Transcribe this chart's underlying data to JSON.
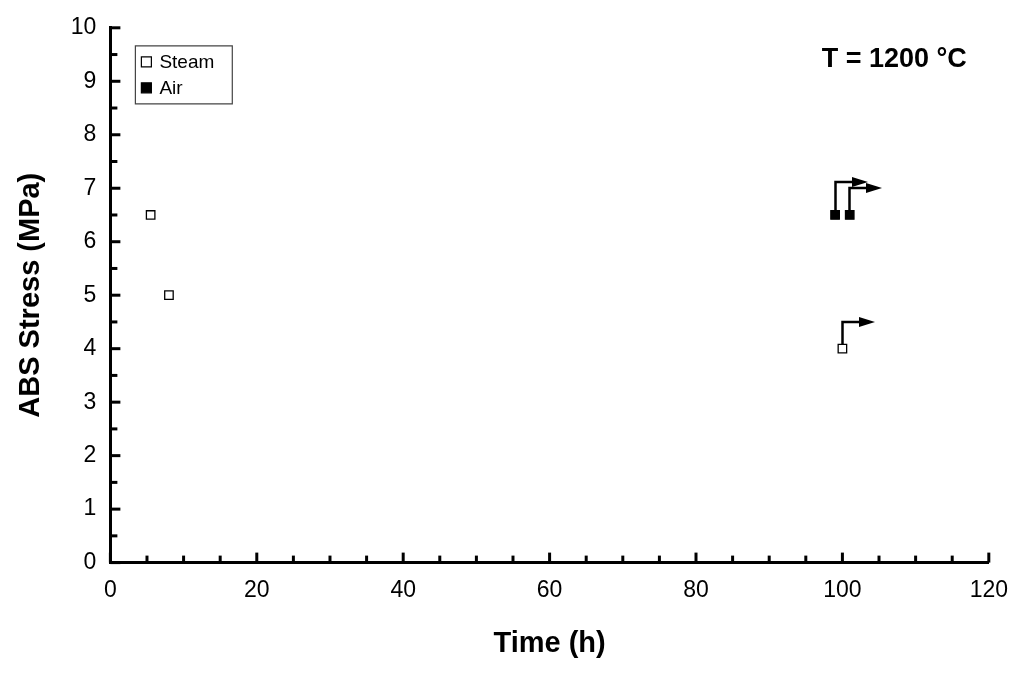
{
  "chart_data": {
    "type": "scatter",
    "xlabel": "Time (h)",
    "ylabel": "ABS Stress (MPa)",
    "xlim": [
      0,
      120
    ],
    "ylim": [
      0,
      10
    ],
    "xticks": [
      0,
      {
        "value": 5,
        "label": null
      },
      {
        "value": 10,
        "label": null
      },
      {
        "value": 15,
        "label": null
      },
      20,
      {
        "value": 25,
        "label": null
      },
      {
        "value": 30,
        "label": null
      },
      {
        "value": 35,
        "label": null
      },
      40,
      {
        "value": 45,
        "label": null
      },
      {
        "value": 50,
        "label": null
      },
      {
        "value": 55,
        "label": null
      },
      60,
      {
        "value": 65,
        "label": null
      },
      {
        "value": 70,
        "label": null
      },
      {
        "value": 75,
        "label": null
      },
      80,
      {
        "value": 85,
        "label": null
      },
      {
        "value": 90,
        "label": null
      },
      {
        "value": 95,
        "label": null
      },
      100,
      {
        "value": 105,
        "label": null
      },
      {
        "value": 110,
        "label": null
      },
      {
        "value": 115,
        "label": null
      },
      120
    ],
    "yticks": [
      0,
      {
        "value": 0.5,
        "label": null
      },
      1,
      {
        "value": 1.5,
        "label": null
      },
      2,
      {
        "value": 2.5,
        "label": null
      },
      3,
      {
        "value": 3.5,
        "label": null
      },
      4,
      {
        "value": 4.5,
        "label": null
      },
      5,
      {
        "value": 5.5,
        "label": null
      },
      6,
      {
        "value": 6.5,
        "label": null
      },
      7,
      {
        "value": 7.5,
        "label": null
      },
      8,
      {
        "value": 8.5,
        "label": null
      },
      9,
      {
        "value": 9.5,
        "label": null
      },
      10
    ],
    "series": [
      {
        "name": "Steam",
        "color": "#ffffff",
        "x": [
          5.5,
          8,
          100
        ],
        "values": [
          6.5,
          5,
          4
        ]
      },
      {
        "name": "Air",
        "color": "#000000",
        "x": [
          99,
          101
        ],
        "values": [
          6.5,
          6.5
        ]
      }
    ],
    "marker": "square",
    "legend": "top left",
    "grid": false,
    "annotations": [
      "T = 1200 °C"
    ]
  }
}
